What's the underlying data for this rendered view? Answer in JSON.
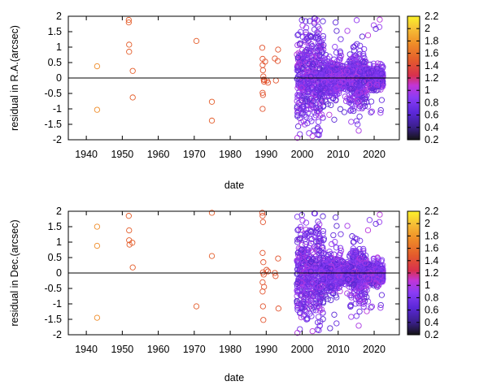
{
  "chart_data": [
    {
      "type": "scatter",
      "title": "",
      "xlabel": "date",
      "ylabel": "residual in R.A.(arcsec)",
      "xlim": [
        1935,
        2027
      ],
      "ylim": [
        -2,
        2
      ],
      "xticks": [
        "1940",
        "1950",
        "1960",
        "1970",
        "1980",
        "1990",
        "2000",
        "2010",
        "2020"
      ],
      "yticks": [
        "-2",
        "-1.5",
        "-1",
        "-0.5",
        "0",
        "0.5",
        "1",
        "1.5",
        "2"
      ],
      "zero_line": 0,
      "colorbar": {
        "range": [
          0.2,
          2.2
        ],
        "ticks": [
          "0.2",
          "0.4",
          "0.6",
          "0.8",
          "1",
          "1.2",
          "1.4",
          "1.6",
          "1.8",
          "2",
          "2.2"
        ]
      },
      "points": [
        [
          1943.0,
          0.38,
          1.75
        ],
        [
          1943.0,
          -1.03,
          1.75
        ],
        [
          1951.8,
          1.88,
          1.5
        ],
        [
          1951.8,
          1.8,
          1.5
        ],
        [
          1951.9,
          1.08,
          1.5
        ],
        [
          1951.9,
          0.85,
          1.5
        ],
        [
          1952.9,
          0.23,
          1.5
        ],
        [
          1952.9,
          -0.63,
          1.5
        ],
        [
          1970.6,
          1.2,
          1.5
        ],
        [
          1974.9,
          -0.77,
          1.5
        ],
        [
          1974.9,
          -1.38,
          1.5
        ],
        [
          1988.9,
          0.98,
          1.45
        ],
        [
          1989.0,
          0.62,
          1.45
        ],
        [
          1989.0,
          0.42,
          1.45
        ],
        [
          1989.1,
          0.25,
          1.45
        ],
        [
          1989.2,
          0.05,
          1.45
        ],
        [
          1989.3,
          -0.05,
          1.45
        ],
        [
          1989.4,
          -0.12,
          1.45
        ],
        [
          1989.5,
          -0.07,
          1.45
        ],
        [
          1989.0,
          -0.48,
          1.45
        ],
        [
          1989.1,
          -0.55,
          1.45
        ],
        [
          1989.0,
          -1.0,
          1.45
        ],
        [
          1989.7,
          0.53,
          1.45
        ],
        [
          1990.2,
          -0.08,
          1.45
        ],
        [
          1990.5,
          -0.15,
          1.45
        ],
        [
          1992.4,
          0.63,
          1.45
        ],
        [
          1993.2,
          0.55,
          1.45
        ],
        [
          1993.3,
          0.92,
          1.45
        ],
        [
          1992.7,
          -0.08,
          1.45
        ]
      ],
      "dense": {
        "xmin": 1998.5,
        "xmax": 2022.5,
        "color_range": [
          0.6,
          1.05
        ]
      }
    },
    {
      "type": "scatter",
      "title": "",
      "xlabel": "date",
      "ylabel": "residual in Dec.(arcsec)",
      "xlim": [
        1935,
        2027
      ],
      "ylim": [
        -2,
        2
      ],
      "xticks": [
        "1940",
        "1950",
        "1960",
        "1970",
        "1980",
        "1990",
        "2000",
        "2010",
        "2020"
      ],
      "yticks": [
        "-2",
        "-1.5",
        "-1",
        "-0.5",
        "0",
        "0.5",
        "1",
        "1.5",
        "2"
      ],
      "zero_line": 0,
      "colorbar": {
        "range": [
          0.2,
          2.2
        ],
        "ticks": [
          "0.2",
          "0.4",
          "0.6",
          "0.8",
          "1",
          "1.2",
          "1.4",
          "1.6",
          "1.8",
          "2",
          "2.2"
        ]
      },
      "points": [
        [
          1943.0,
          1.5,
          1.75
        ],
        [
          1943.0,
          0.88,
          1.75
        ],
        [
          1943.0,
          -1.45,
          1.75
        ],
        [
          1951.8,
          1.85,
          1.5
        ],
        [
          1951.9,
          1.38,
          1.5
        ],
        [
          1951.9,
          1.06,
          1.5
        ],
        [
          1952.0,
          0.92,
          1.5
        ],
        [
          1952.8,
          0.98,
          1.5
        ],
        [
          1952.9,
          0.18,
          1.5
        ],
        [
          1970.6,
          -1.08,
          1.5
        ],
        [
          1974.9,
          1.95,
          1.5
        ],
        [
          1974.9,
          0.55,
          1.5
        ],
        [
          1988.9,
          1.95,
          1.45
        ],
        [
          1989.0,
          1.85,
          1.45
        ],
        [
          1989.1,
          1.65,
          1.45
        ],
        [
          1989.0,
          0.65,
          1.45
        ],
        [
          1989.2,
          0.35,
          1.45
        ],
        [
          1989.1,
          0.02,
          1.45
        ],
        [
          1989.3,
          -0.05,
          1.45
        ],
        [
          1989.0,
          -0.3,
          1.45
        ],
        [
          1989.4,
          -0.45,
          1.45
        ],
        [
          1989.0,
          -0.6,
          1.45
        ],
        [
          1989.1,
          -1.08,
          1.45
        ],
        [
          1989.2,
          -1.52,
          1.45
        ],
        [
          1990.1,
          0.1,
          1.45
        ],
        [
          1992.4,
          0.0,
          1.45
        ],
        [
          1992.6,
          -0.1,
          1.45
        ],
        [
          1993.3,
          0.47,
          1.45
        ],
        [
          1993.4,
          -1.15,
          1.45
        ],
        [
          1990.5,
          0.05,
          1.45
        ]
      ],
      "dense": {
        "xmin": 1998.5,
        "xmax": 2022.5,
        "color_range": [
          0.6,
          1.05
        ]
      }
    }
  ]
}
